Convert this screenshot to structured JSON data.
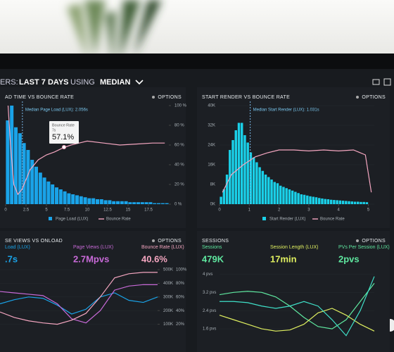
{
  "header": {
    "parts": [
      "ERS:",
      "LAST 7 DAYS",
      "USING",
      "MEDIAN"
    ]
  },
  "panels": [
    {
      "title": "AD TIME VS BOUNCE RATE",
      "options": "OPTIONS",
      "annotation": "Median Page Load (LUX): 2.056s",
      "median": 2.056,
      "xlim": [
        0,
        20
      ],
      "xticks": [
        0,
        2.5,
        5,
        7.5,
        10,
        12.5,
        15,
        17.5
      ],
      "ylim": [
        0,
        100
      ],
      "y2lim": [
        0,
        100
      ],
      "y2ticks": [
        {
          "value": 100,
          "label": "100 %"
        },
        {
          "value": 80,
          "label": "80 %"
        },
        {
          "value": 60,
          "label": "60 %"
        },
        {
          "value": 40,
          "label": "40 %"
        },
        {
          "value": 20,
          "label": "20 %"
        },
        {
          "value": 0,
          "label": "0 %"
        }
      ],
      "bins": [
        0,
        0.5,
        1,
        1.5,
        2,
        2.5,
        3,
        3.5,
        4,
        4.5,
        5,
        5.5,
        6,
        6.5,
        7,
        7.5,
        8,
        8.5,
        9,
        9.5,
        10,
        10.5,
        11,
        11.5,
        12,
        12.5,
        13,
        13.5,
        14,
        14.5,
        15,
        15.5,
        16,
        16.5,
        17,
        17.5,
        18,
        18.5,
        19,
        19.5,
        20
      ],
      "counts": [
        85,
        100,
        78,
        72,
        62,
        55,
        45,
        38,
        32,
        27,
        23,
        20,
        17,
        15,
        13,
        11,
        10,
        9,
        8,
        7,
        6,
        6,
        5,
        5,
        4,
        4,
        3,
        3,
        3,
        3,
        2,
        2,
        2,
        2,
        2,
        2,
        1,
        1,
        1,
        1
      ],
      "series": [
        {
          "name": "Page Load (LUX)",
          "color": "#1aa3e8"
        },
        {
          "name": "Bounce Rate",
          "color": "#f4a6c0",
          "axis": "y2",
          "x": [
            0.3,
            0.6,
            1,
            1.5,
            2,
            3,
            4,
            5,
            6,
            7,
            8,
            9,
            10,
            12,
            14,
            16,
            18,
            19.5
          ],
          "values": [
            100,
            60,
            20,
            10,
            15,
            35,
            45,
            50,
            53,
            57,
            60,
            62,
            64,
            62,
            60,
            61,
            62,
            62
          ]
        }
      ],
      "tooltip": {
        "label": "Bounce Rate",
        "sub": "7s",
        "value": "57.1%"
      }
    },
    {
      "title": "START RENDER VS BOUNCE RATE",
      "options": "OPTIONS",
      "annotation": "Median Start Render (LUX): 1.031s",
      "median": 1.031,
      "xlim": [
        0,
        5.2
      ],
      "xticks": [
        0,
        1,
        2,
        3,
        4,
        5
      ],
      "ylim": [
        0,
        40000
      ],
      "yticks": [
        {
          "value": 40000,
          "label": "40K"
        },
        {
          "value": 32000,
          "label": "32K"
        },
        {
          "value": 24000,
          "label": "24K"
        },
        {
          "value": 16000,
          "label": "16K"
        },
        {
          "value": 8000,
          "label": "8K"
        },
        {
          "value": 0,
          "label": "0K"
        }
      ],
      "y2lim": [
        0,
        100
      ],
      "bins": [
        0,
        0.1,
        0.2,
        0.3,
        0.4,
        0.5,
        0.6,
        0.7,
        0.8,
        0.9,
        1,
        1.1,
        1.2,
        1.3,
        1.4,
        1.5,
        1.6,
        1.7,
        1.8,
        1.9,
        2,
        2.1,
        2.2,
        2.3,
        2.4,
        2.5,
        2.6,
        2.7,
        2.8,
        2.9,
        3,
        3.1,
        3.2,
        3.3,
        3.4,
        3.5,
        3.6,
        3.7,
        3.8,
        3.9,
        4,
        4.1,
        4.2,
        4.3,
        4.4,
        4.5,
        4.6,
        4.7,
        4.8,
        4.9,
        5
      ],
      "counts": [
        3000,
        6000,
        12000,
        22000,
        26000,
        30000,
        33000,
        33000,
        28000,
        25000,
        21000,
        19000,
        17000,
        15000,
        13500,
        12000,
        11000,
        10000,
        9000,
        8500,
        7500,
        7000,
        6500,
        6000,
        5500,
        5000,
        4500,
        4000,
        3800,
        3500,
        3200,
        3000,
        2800,
        2500,
        2300,
        2100,
        2000,
        1800,
        1700,
        1600,
        1500,
        1400,
        1300,
        1200,
        1100,
        1000,
        1000,
        900,
        900,
        800
      ],
      "series": [
        {
          "name": "Start Render (LUX)",
          "color": "#1ad0e8"
        },
        {
          "name": "Bounce Rate",
          "color": "#f4a6c0",
          "axis": "y2",
          "x": [
            0.1,
            0.4,
            0.8,
            1.2,
            1.6,
            2,
            2.5,
            3,
            3.5,
            4,
            4.5,
            4.9,
            5.1
          ],
          "values": [
            12,
            30,
            40,
            48,
            52,
            55,
            55,
            54,
            55,
            54,
            55,
            50,
            12
          ]
        }
      ]
    },
    {
      "title": "SE VIEWS VS ONLOAD",
      "options": "OPTIONS",
      "metrics": [
        {
          "label": "Load (LUX)",
          "value": ".7s",
          "color": "#1aa3e8"
        },
        {
          "label": "Page Views (LUX)",
          "value": "2.7Mpvs",
          "color": "#c86ad8"
        },
        {
          "label": "Bounce Rate (LUX)",
          "value": "40.6%",
          "color": "#f4a6c0"
        }
      ],
      "ylim": [
        0,
        100
      ],
      "yticks": [
        {
          "value": 100,
          "label": "500K"
        },
        {
          "value": 80,
          "label": "400K"
        },
        {
          "value": 60,
          "label": "300K"
        },
        {
          "value": 40,
          "label": "200K"
        },
        {
          "value": 20,
          "label": "100K"
        }
      ],
      "y2ticks": [
        {
          "value": 100,
          "label": "100%"
        },
        {
          "value": 80,
          "label": "80%"
        },
        {
          "value": 60,
          "label": "60%"
        },
        {
          "value": 40,
          "label": "40%"
        },
        {
          "value": 20,
          "label": "20%"
        }
      ],
      "series": [
        {
          "color": "#1aa3e8",
          "values": [
            50,
            56,
            60,
            58,
            48,
            35,
            42,
            60,
            66,
            55,
            52,
            60
          ]
        },
        {
          "color": "#c86ad8",
          "values": [
            68,
            66,
            64,
            62,
            50,
            28,
            22,
            40,
            70,
            76,
            78,
            78
          ]
        },
        {
          "color": "#f4a6c0",
          "values": [
            38,
            30,
            25,
            22,
            20,
            26,
            36,
            60,
            88,
            94,
            96,
            96
          ]
        }
      ]
    },
    {
      "title": "SESSIONS",
      "options": "OPTIONS",
      "metrics": [
        {
          "label": "Sessions",
          "value": "479K",
          "color": "#5fe8a0"
        },
        {
          "label": "Session Length (LUX)",
          "value": "17min",
          "color": "#e0f060"
        },
        {
          "label": "PVs Per Session (LUX)",
          "value": "2pvs",
          "color": "#5fe8a0"
        }
      ],
      "ylim": [
        1.2,
        4.2
      ],
      "yticks": [
        {
          "value": 4,
          "label": "4 pvs"
        },
        {
          "value": 3.2,
          "label": "3.2 pvs"
        },
        {
          "value": 2.4,
          "label": "2.4 pvs"
        },
        {
          "value": 1.6,
          "label": "1.6 pvs"
        }
      ],
      "series": [
        {
          "color": "#5fe8a0",
          "values": [
            3.1,
            3.2,
            3.25,
            3.2,
            3.0,
            2.6,
            2.1,
            1.7,
            1.6,
            2.0,
            2.8,
            3.6
          ]
        },
        {
          "color": "#e0f060",
          "values": [
            2.2,
            2.0,
            1.8,
            1.6,
            1.5,
            1.55,
            1.8,
            2.3,
            2.5,
            2.2,
            1.8,
            1.5
          ]
        },
        {
          "color": "#3fe0c8",
          "values": [
            2.8,
            2.8,
            2.75,
            2.6,
            2.5,
            2.6,
            2.8,
            2.6,
            2.0,
            1.3,
            2.4,
            3.9
          ]
        }
      ]
    }
  ]
}
